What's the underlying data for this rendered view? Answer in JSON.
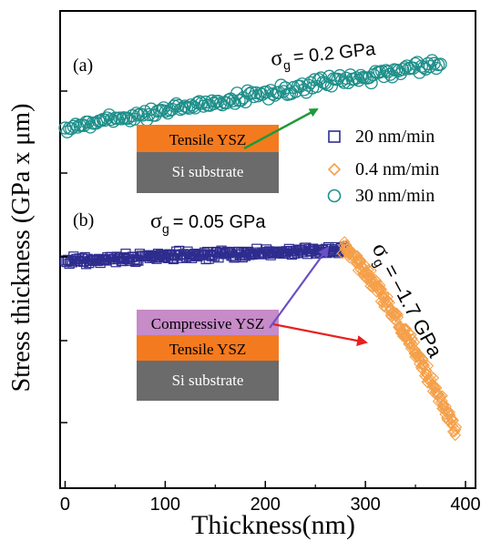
{
  "chart_data": {
    "type": "scatter",
    "xlabel": "Thickness(nm)",
    "ylabel": "Stress thickness (GPa x μm)",
    "xlim": [
      -5,
      410
    ],
    "x_ticks": [
      0,
      100,
      200,
      300,
      400
    ],
    "y_ticks_labeled": false,
    "grid": false,
    "legend_position": "right",
    "panels": [
      {
        "label": "(a)"
      },
      {
        "label": "(b)"
      }
    ],
    "series": [
      {
        "name": "20 nm/min",
        "marker": "square",
        "color": "#2e2d8f",
        "panel": "b",
        "x_range": [
          0,
          280
        ],
        "trend": "flat",
        "stress_gpa": 0.05
      },
      {
        "name": "0.4 nm/min",
        "marker": "diamond",
        "color": "#f5a04a",
        "panel": "b",
        "x_range": [
          278,
          390
        ],
        "trend": "decreasing",
        "stress_gpa": -1.7
      },
      {
        "name": "30 nm/min",
        "marker": "circle",
        "color": "#1e8f8a",
        "panel": "a",
        "x_range": [
          0,
          375
        ],
        "trend": "increasing",
        "stress_gpa": 0.2
      }
    ],
    "annotations": {
      "a_sigma": "= 0.2 GPa",
      "b_sigma": "= 0.05 GPa",
      "c_sigma": "= –1.7 GPa",
      "sigma_symbol": "σ",
      "sigma_subscript": "g"
    },
    "insets": {
      "a_layers": [
        "Tensile YSZ",
        "Si substrate"
      ],
      "b_layers": [
        "Compressive YSZ",
        "Tensile YSZ",
        "Si substrate"
      ]
    },
    "colors": {
      "compressive": "#c78bc8",
      "tensile": "#f47a1f",
      "substrate": "#6b6b6b",
      "arrow_green": "#1f9a3a",
      "arrow_purple": "#6a4fc4",
      "arrow_red": "#e82020"
    }
  }
}
